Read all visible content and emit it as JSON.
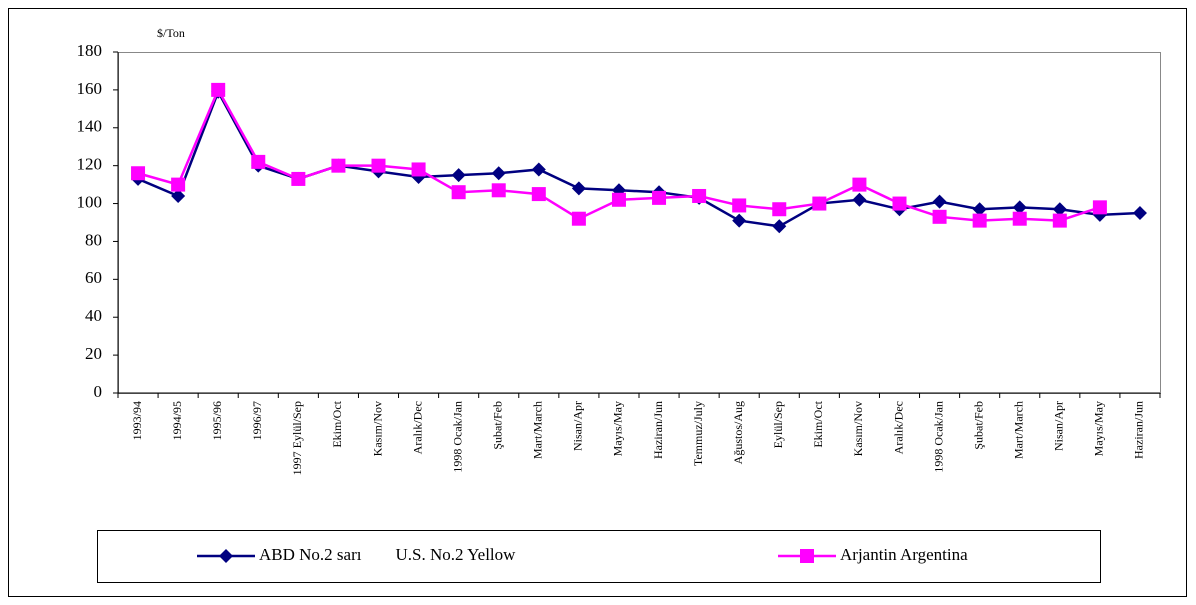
{
  "chart_data": {
    "type": "line",
    "unit_label": "$/Ton",
    "categories": [
      "1993/94",
      "1994/95",
      "1995/96",
      "1996/97",
      "1997 Eylül/Sep",
      "Ekim/Oct",
      "Kasım/Nov",
      "Aralık/Dec",
      "1998 Ocak/Jan",
      "Şubat/Feb",
      "Mart/March",
      "Nisan/Apr",
      "Mayıs/May",
      "Haziran/Jun",
      "Temmuz/July",
      "Ağustos/Aug",
      "Eylül/Sep",
      "Ekim/Oct",
      "Kasım/Nov",
      "Aralık/Dec",
      "1998 Ocak/Jan",
      "Şubat/Feb",
      "Mart/March",
      "Nisan/Apr",
      "Mayıs/May",
      "Haziran/Jun"
    ],
    "series": [
      {
        "name": "ABD No.2 sarı        U.S. No.2 Yellow",
        "color": "#000080",
        "marker": "diamond",
        "values": [
          113,
          104,
          159,
          120,
          113,
          120,
          117,
          114,
          115,
          116,
          118,
          108,
          107,
          106,
          103,
          91,
          88,
          100,
          102,
          97,
          101,
          97,
          98,
          97,
          94,
          95
        ]
      },
      {
        "name": "Arjantin Argentina",
        "color": "#ff00ff",
        "marker": "square",
        "values": [
          116,
          110,
          160,
          122,
          113,
          120,
          120,
          118,
          106,
          107,
          105,
          92,
          102,
          103,
          104,
          99,
          97,
          100,
          110,
          100,
          93,
          91,
          92,
          91,
          98,
          null
        ]
      }
    ],
    "ylim": [
      0,
      180
    ],
    "yticks": [
      0,
      20,
      40,
      60,
      80,
      100,
      120,
      140,
      160,
      180
    ],
    "grid": false
  }
}
